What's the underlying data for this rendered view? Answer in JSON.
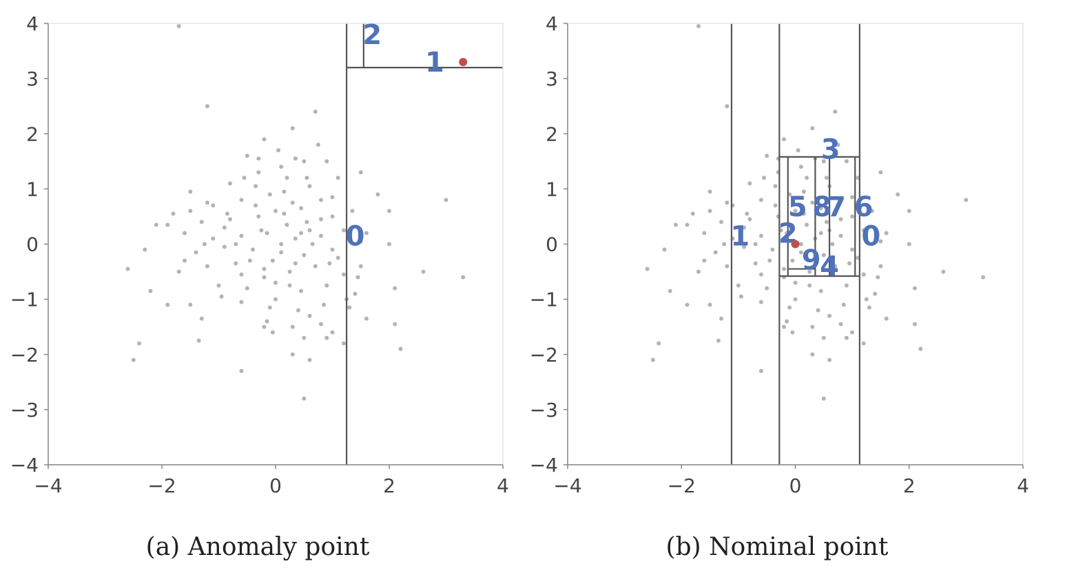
{
  "chart_data": [
    {
      "type": "scatter",
      "title": "",
      "caption": "(a) Anomaly point",
      "xlabel": "",
      "ylabel": "",
      "xlim": [
        -4,
        4
      ],
      "ylim": [
        -4,
        4
      ],
      "x_ticks": [
        -4,
        -2,
        0,
        2,
        4
      ],
      "y_ticks": [
        -4,
        -3,
        -2,
        -1,
        0,
        1,
        2,
        3,
        4
      ],
      "x_tick_labels": [
        "−4",
        "−2",
        "0",
        "2",
        "4"
      ],
      "y_tick_labels": [
        "−4",
        "−3",
        "−2",
        "−1",
        "0",
        "1",
        "2",
        "3",
        "4"
      ],
      "highlight_point": {
        "x": 3.3,
        "y": 3.3,
        "color": "#c0504d"
      },
      "splits": [
        {
          "orientation": "vertical",
          "value": 1.25,
          "from": -4,
          "to": 4
        },
        {
          "orientation": "horizontal",
          "value": 3.2,
          "from": 1.25,
          "to": 4
        },
        {
          "orientation": "vertical",
          "value": 1.55,
          "from": 3.2,
          "to": 4
        }
      ],
      "partition_labels": [
        {
          "text": "0",
          "x": 1.4,
          "y": 0.15
        },
        {
          "text": "1",
          "x": 2.8,
          "y": 3.3
        },
        {
          "text": "2",
          "x": 1.7,
          "y": 3.8
        }
      ]
    },
    {
      "type": "scatter",
      "title": "",
      "caption": "(b) Nominal point",
      "xlabel": "",
      "ylabel": "",
      "xlim": [
        -4,
        4
      ],
      "ylim": [
        -4,
        4
      ],
      "x_ticks": [
        -4,
        -2,
        0,
        2,
        4
      ],
      "y_ticks": [
        -4,
        -3,
        -2,
        -1,
        0,
        1,
        2,
        3,
        4
      ],
      "x_tick_labels": [
        "−4",
        "−2",
        "0",
        "2",
        "4"
      ],
      "y_tick_labels": [
        "−4",
        "−3",
        "−2",
        "−1",
        "0",
        "1",
        "2",
        "3",
        "4"
      ],
      "highlight_point": {
        "x": 0.0,
        "y": 0.0,
        "color": "#c0504d"
      },
      "splits": [
        {
          "orientation": "vertical",
          "value": 1.13,
          "from": -4,
          "to": 4
        },
        {
          "orientation": "vertical",
          "value": -1.12,
          "from": -4,
          "to": 4
        },
        {
          "orientation": "vertical",
          "value": -0.28,
          "from": -4,
          "to": 4
        },
        {
          "orientation": "horizontal",
          "value": 1.58,
          "from": -0.28,
          "to": 1.13
        },
        {
          "orientation": "horizontal",
          "value": -0.58,
          "from": -0.28,
          "to": 1.13
        },
        {
          "orientation": "vertical",
          "value": -0.13,
          "from": -0.58,
          "to": 1.58
        },
        {
          "orientation": "vertical",
          "value": 1.05,
          "from": -0.58,
          "to": 1.58
        },
        {
          "orientation": "vertical",
          "value": 0.35,
          "from": -0.58,
          "to": 1.58
        },
        {
          "orientation": "vertical",
          "value": 0.6,
          "from": -0.58,
          "to": 1.58
        },
        {
          "orientation": "horizontal",
          "value": -0.45,
          "from": -0.13,
          "to": 0.35
        }
      ],
      "partition_labels": [
        {
          "text": "0",
          "x": 1.33,
          "y": 0.15
        },
        {
          "text": "1",
          "x": -0.97,
          "y": 0.15
        },
        {
          "text": "2",
          "x": -0.13,
          "y": 0.2
        },
        {
          "text": "3",
          "x": 0.62,
          "y": 1.72
        },
        {
          "text": "4",
          "x": 0.6,
          "y": -0.4
        },
        {
          "text": "5",
          "x": 0.04,
          "y": 0.68
        },
        {
          "text": "6",
          "x": 1.2,
          "y": 0.68
        },
        {
          "text": "7",
          "x": 0.72,
          "y": 0.68
        },
        {
          "text": "8",
          "x": 0.47,
          "y": 0.68
        },
        {
          "text": "9",
          "x": 0.28,
          "y": -0.28
        }
      ]
    }
  ],
  "shared_points": [
    [
      -0.2,
      1.9
    ],
    [
      0.3,
      2.1
    ],
    [
      0.7,
      2.4
    ],
    [
      -1.2,
      2.5
    ],
    [
      -0.5,
      1.6
    ],
    [
      0.05,
      1.7
    ],
    [
      0.5,
      1.5
    ],
    [
      0.9,
      1.5
    ],
    [
      -0.8,
      1.1
    ],
    [
      -0.3,
      1.3
    ],
    [
      0.2,
      1.2
    ],
    [
      0.6,
      1.05
    ],
    [
      1.1,
      1.2
    ],
    [
      -1.5,
      0.95
    ],
    [
      -1.1,
      0.7
    ],
    [
      -0.6,
      0.8
    ],
    [
      -0.1,
      0.9
    ],
    [
      0.3,
      0.75
    ],
    [
      0.8,
      0.8
    ],
    [
      1.35,
      0.6
    ],
    [
      -1.8,
      0.55
    ],
    [
      -1.3,
      0.4
    ],
    [
      -0.8,
      0.45
    ],
    [
      -0.3,
      0.5
    ],
    [
      0.15,
      0.55
    ],
    [
      0.55,
      0.4
    ],
    [
      1.0,
      0.5
    ],
    [
      -2.1,
      0.35
    ],
    [
      -1.6,
      0.2
    ],
    [
      -1.1,
      0.1
    ],
    [
      -0.6,
      0.15
    ],
    [
      -0.15,
      0.2
    ],
    [
      0.35,
      0.1
    ],
    [
      0.8,
      0.15
    ],
    [
      1.5,
      0.05
    ],
    [
      -2.3,
      -0.1
    ],
    [
      -1.4,
      -0.15
    ],
    [
      -0.9,
      -0.05
    ],
    [
      -0.4,
      -0.1
    ],
    [
      0.1,
      -0.15
    ],
    [
      0.5,
      -0.2
    ],
    [
      1.0,
      -0.1
    ],
    [
      -1.7,
      -0.5
    ],
    [
      -1.2,
      -0.4
    ],
    [
      -0.7,
      -0.35
    ],
    [
      -0.2,
      -0.45
    ],
    [
      0.25,
      -0.5
    ],
    [
      0.7,
      -0.4
    ],
    [
      1.2,
      -0.55
    ],
    [
      -2.6,
      -0.45
    ],
    [
      -1.0,
      -0.75
    ],
    [
      -0.5,
      -0.8
    ],
    [
      0.0,
      -0.7
    ],
    [
      0.45,
      -0.85
    ],
    [
      0.9,
      -0.75
    ],
    [
      1.4,
      -0.9
    ],
    [
      -2.2,
      -0.85
    ],
    [
      -1.5,
      -1.1
    ],
    [
      -0.6,
      -1.05
    ],
    [
      -0.1,
      -1.15
    ],
    [
      0.4,
      -1.2
    ],
    [
      0.85,
      -1.1
    ],
    [
      1.3,
      -1.15
    ],
    [
      -1.9,
      -1.1
    ],
    [
      -1.3,
      -1.35
    ],
    [
      -0.2,
      -1.5
    ],
    [
      0.3,
      -1.5
    ],
    [
      0.8,
      -1.45
    ],
    [
      1.6,
      -1.35
    ],
    [
      2.1,
      -1.45
    ],
    [
      -2.4,
      -1.8
    ],
    [
      -1.35,
      -1.75
    ],
    [
      -0.05,
      -1.6
    ],
    [
      0.5,
      -1.7
    ],
    [
      1.0,
      -1.6
    ],
    [
      2.2,
      -1.9
    ],
    [
      -2.5,
      -2.1
    ],
    [
      0.3,
      -2.0
    ],
    [
      0.6,
      -2.1
    ],
    [
      1.2,
      -1.8
    ],
    [
      -0.6,
      -2.3
    ],
    [
      0.5,
      -2.8
    ],
    [
      1.5,
      -0.4
    ],
    [
      2.0,
      0.6
    ],
    [
      2.0,
      0.0
    ],
    [
      2.1,
      -0.8
    ],
    [
      2.6,
      -0.5
    ],
    [
      3.0,
      0.8
    ],
    [
      3.3,
      -0.6
    ],
    [
      -1.7,
      3.95
    ],
    [
      -0.35,
      0.7
    ],
    [
      -0.25,
      0.25
    ],
    [
      0.2,
      0.35
    ],
    [
      0.45,
      0.65
    ],
    [
      -0.45,
      -0.3
    ],
    [
      0.0,
      0.6
    ],
    [
      0.65,
      0.0
    ],
    [
      -0.7,
      0.0
    ],
    [
      0.1,
      0.0
    ],
    [
      -0.05,
      -0.3
    ],
    [
      0.35,
      -0.35
    ],
    [
      0.6,
      0.25
    ],
    [
      -0.9,
      0.3
    ],
    [
      1.2,
      0.25
    ],
    [
      -1.2,
      0.75
    ],
    [
      0.95,
      -0.35
    ],
    [
      -0.55,
      1.2
    ],
    [
      0.35,
      1.55
    ],
    [
      0.75,
      1.8
    ],
    [
      -0.35,
      1.05
    ],
    [
      0.1,
      1.4
    ],
    [
      -0.95,
      -0.95
    ],
    [
      1.5,
      1.3
    ],
    [
      1.8,
      0.9
    ],
    [
      -1.5,
      0.6
    ],
    [
      0.0,
      -1.0
    ],
    [
      0.6,
      -1.3
    ],
    [
      1.1,
      -0.25
    ],
    [
      -0.2,
      -0.6
    ],
    [
      -1.6,
      -0.3
    ],
    [
      -0.85,
      0.55
    ],
    [
      0.25,
      -0.75
    ],
    [
      0.8,
      0.45
    ],
    [
      1.45,
      -0.6
    ],
    [
      -0.3,
      1.55
    ],
    [
      1.0,
      0.85
    ],
    [
      -1.9,
      0.35
    ],
    [
      0.55,
      1.2
    ],
    [
      -0.6,
      -0.55
    ],
    [
      0.15,
      0.95
    ],
    [
      1.25,
      -1.0
    ],
    [
      -1.25,
      0.0
    ],
    [
      0.45,
      0.2
    ],
    [
      -0.15,
      -1.4
    ],
    [
      0.9,
      -1.7
    ],
    [
      1.6,
      0.2
    ]
  ]
}
